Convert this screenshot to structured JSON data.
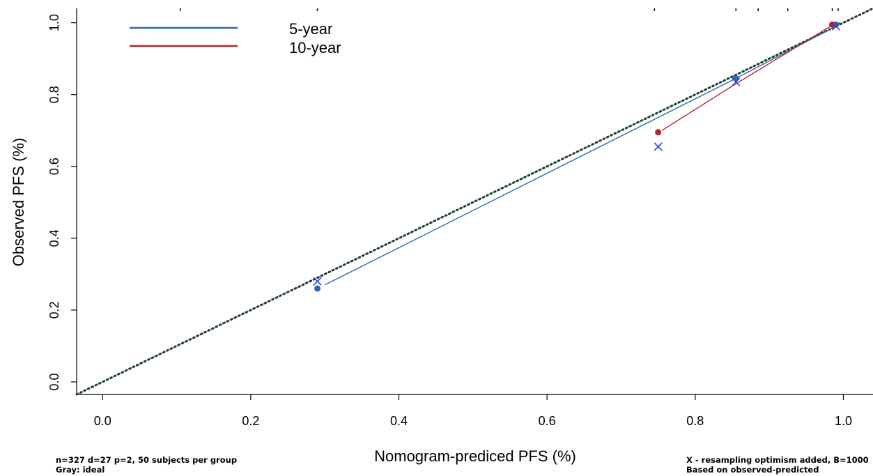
{
  "chart_data": {
    "type": "scatter",
    "xlabel": "Nomogram-prediced PFS (%)",
    "ylabel": "Observed PFS (%)",
    "xlim": [
      -0.035,
      1.04
    ],
    "ylim": [
      -0.035,
      1.04
    ],
    "x_ticks": [
      "0.0",
      "0.2",
      "0.4",
      "0.6",
      "0.8",
      "1.0"
    ],
    "y_ticks": [
      "0.0",
      "0.2",
      "0.4",
      "0.6",
      "0.8",
      "1.0"
    ],
    "grid": false,
    "legend_position": "top-left",
    "ideal_line": {
      "color": "#1f3f2f",
      "style": "dotted",
      "from": [
        -0.035,
        -0.035
      ],
      "to": [
        1.04,
        1.04
      ]
    },
    "series": [
      {
        "name": "5-year",
        "color": "#2a6ab3",
        "line": [
          [
            0.3,
            0.27
          ],
          [
            0.85,
            0.84
          ],
          [
            0.99,
            0.99
          ]
        ],
        "points": [
          [
            0.29,
            0.26
          ],
          [
            0.855,
            0.845
          ],
          [
            0.99,
            0.995
          ]
        ]
      },
      {
        "name": "10-year",
        "color": "#b5232e",
        "line": [
          [
            0.755,
            0.7
          ],
          [
            0.855,
            0.83
          ],
          [
            0.985,
            0.993
          ]
        ],
        "points": [
          [
            0.75,
            0.695
          ],
          [
            0.985,
            0.995
          ]
        ]
      }
    ],
    "corrected_points": {
      "marker": "x",
      "color": "#2b3fd1",
      "points": [
        [
          0.29,
          0.28
        ],
        [
          0.75,
          0.655
        ],
        [
          0.855,
          0.835
        ],
        [
          0.99,
          0.99
        ]
      ]
    },
    "rug_ticks_x": [
      0.105,
      0.29,
      0.745,
      0.855,
      0.885,
      0.925,
      0.985,
      0.993
    ],
    "notes_left": [
      "n=327 d=27 p=2, 50 subjects per group",
      "Gray: ideal"
    ],
    "notes_right": [
      "X - resampling optimism added, B=1000",
      "Based on observed-predicted"
    ]
  }
}
